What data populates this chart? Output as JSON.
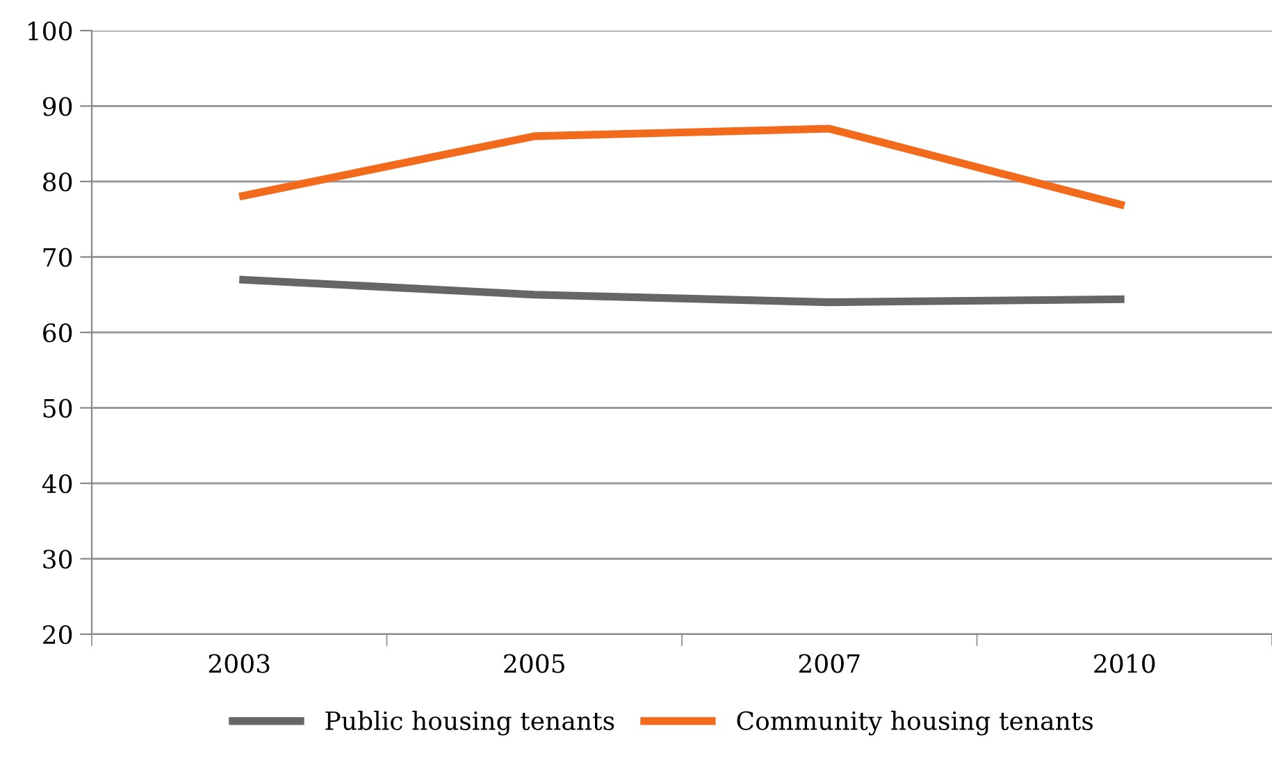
{
  "chart_data": {
    "type": "line",
    "categories": [
      "2003",
      "2005",
      "2007",
      "2010"
    ],
    "series": [
      {
        "name": "Public housing tenants",
        "color": "#666666",
        "values": [
          67,
          65,
          64,
          64.4
        ]
      },
      {
        "name": "Community housing tenants",
        "color": "#f26b1d",
        "values": [
          78,
          86,
          87,
          76.8
        ]
      }
    ],
    "ylim": [
      20,
      100
    ],
    "yticks": [
      20,
      30,
      40,
      50,
      60,
      70,
      80,
      90,
      100
    ],
    "grid": "y",
    "legend": "bottom",
    "marker": "none",
    "line_style": "solid"
  }
}
